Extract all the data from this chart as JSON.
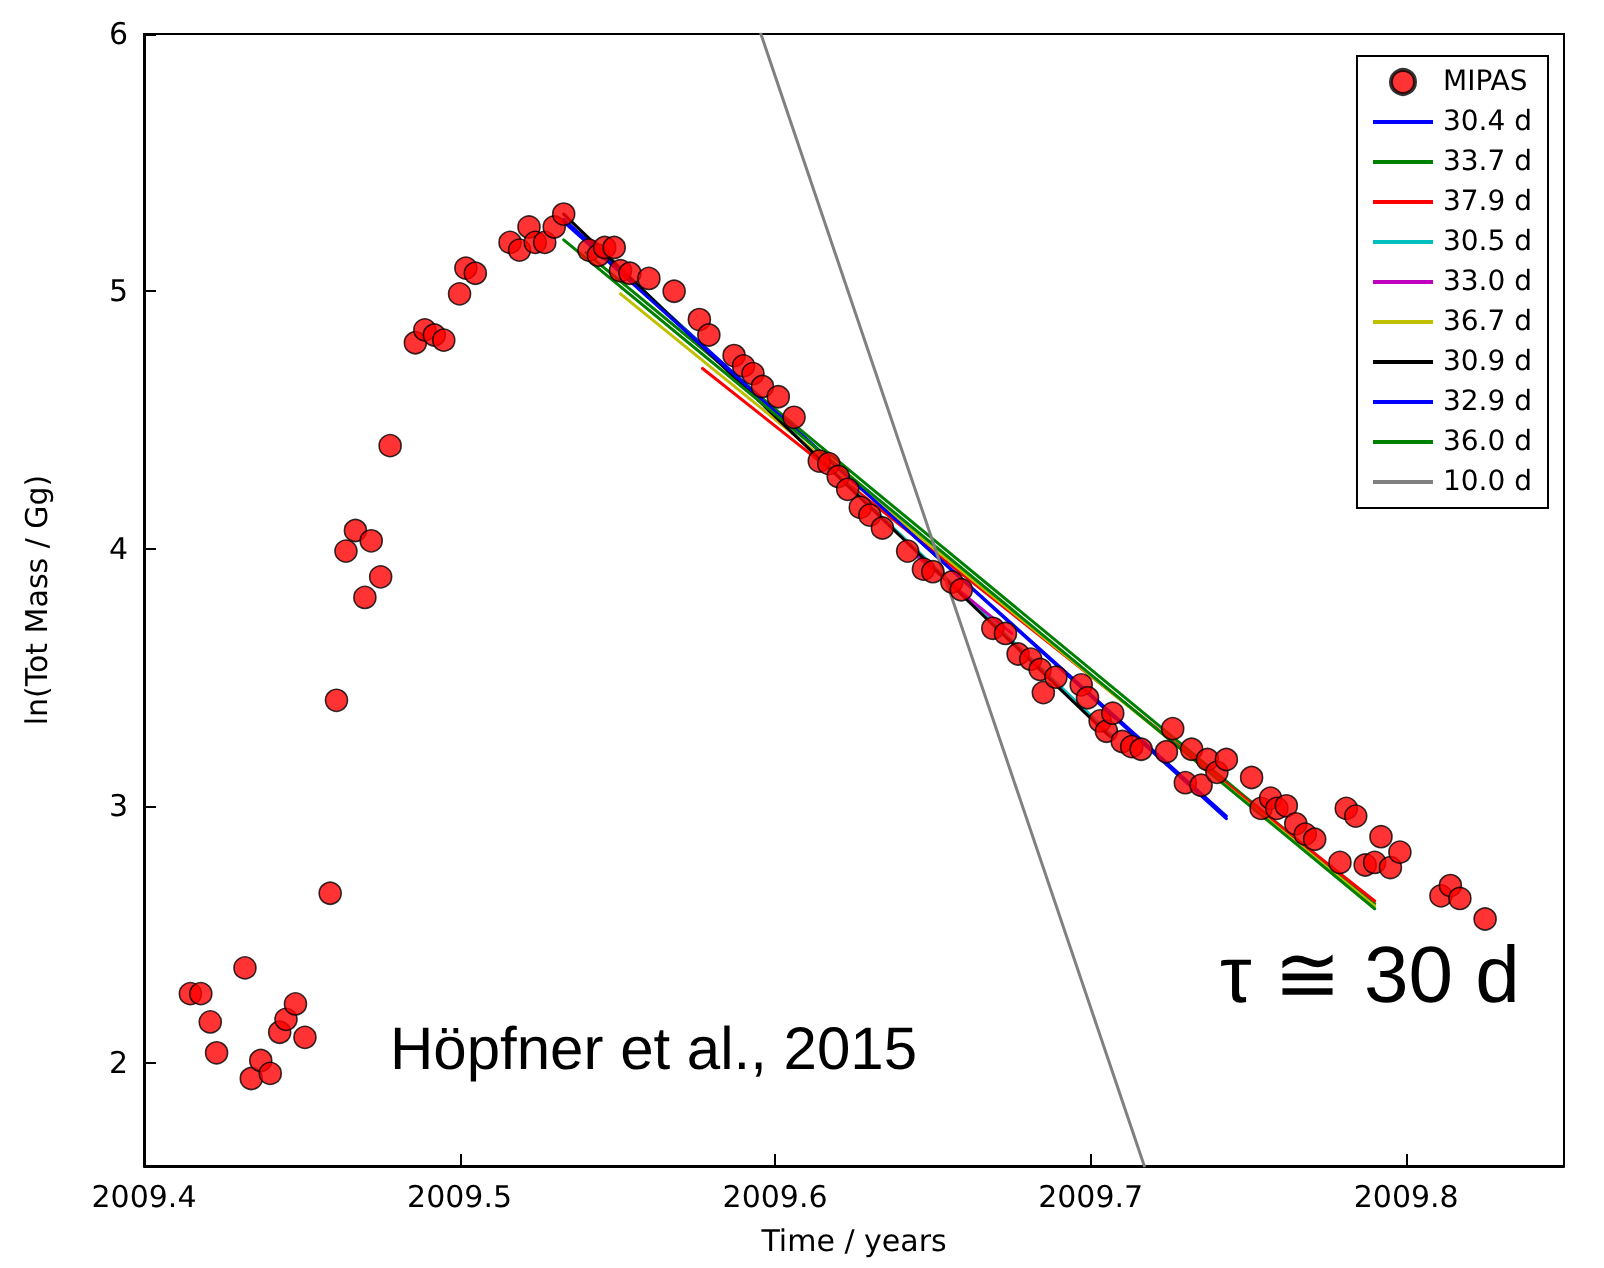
{
  "chart_data": {
    "type": "line",
    "xlabel": "Time / years",
    "ylabel": "ln(Tot Mass / Gg)",
    "annotations": [
      "Höpfner et al., 2015",
      "τ ≅ 30 d"
    ],
    "xlim": [
      2009.4,
      2009.85
    ],
    "xticks": [
      2009.4,
      2009.5,
      2009.6,
      2009.7,
      2009.8
    ],
    "ylim": [
      1.6,
      6
    ],
    "yticks": [
      2,
      3,
      4,
      5,
      6
    ],
    "grid": false,
    "legend": "top right",
    "series": [
      {
        "name": "MIPAS",
        "type": "scatter",
        "marker": "circle",
        "color": "#ff0000",
        "x": [
          2009.4147,
          2009.418,
          2009.421,
          2009.423,
          2009.432,
          2009.434,
          2009.437,
          2009.44,
          2009.443,
          2009.445,
          2009.448,
          2009.451,
          2009.459,
          2009.461,
          2009.464,
          2009.467,
          2009.47,
          2009.472,
          2009.475,
          2009.478,
          2009.486,
          2009.489,
          2009.492,
          2009.495,
          2009.5,
          2009.502,
          2009.505,
          2009.516,
          2009.519,
          2009.522,
          2009.524,
          2009.527,
          2009.53,
          2009.533,
          2009.541,
          2009.544,
          2009.546,
          2009.549,
          2009.551,
          2009.554,
          2009.56,
          2009.568,
          2009.576,
          2009.579,
          2009.587,
          2009.59,
          2009.593,
          2009.596,
          2009.601,
          2009.606,
          2009.614,
          2009.617,
          2009.62,
          2009.623,
          2009.627,
          2009.63,
          2009.634,
          2009.642,
          2009.647,
          2009.65,
          2009.656,
          2009.659,
          2009.669,
          2009.673,
          2009.677,
          2009.681,
          2009.684,
          2009.685,
          2009.689,
          2009.697,
          2009.699,
          2009.703,
          2009.705,
          2009.707,
          2009.71,
          2009.713,
          2009.716,
          2009.724,
          2009.726,
          2009.73,
          2009.732,
          2009.735,
          2009.737,
          2009.74,
          2009.743,
          2009.751,
          2009.754,
          2009.757,
          2009.759,
          2009.762,
          2009.765,
          2009.768,
          2009.771,
          2009.779,
          2009.781,
          2009.784,
          2009.787,
          2009.79,
          2009.792,
          2009.795,
          2009.798,
          2009.811,
          2009.814,
          2009.817,
          2009.825
        ],
        "values": [
          2.27,
          2.27,
          2.16,
          2.04,
          2.37,
          1.94,
          2.01,
          1.96,
          2.12,
          2.17,
          2.23,
          2.1,
          2.66,
          3.41,
          3.99,
          4.07,
          3.81,
          4.03,
          3.89,
          4.4,
          4.8,
          4.85,
          4.83,
          4.81,
          4.99,
          5.09,
          5.07,
          5.19,
          5.16,
          5.25,
          5.19,
          5.19,
          5.25,
          5.3,
          5.16,
          5.14,
          5.17,
          5.17,
          5.08,
          5.07,
          5.05,
          5.0,
          4.89,
          4.83,
          4.75,
          4.71,
          4.68,
          4.63,
          4.59,
          4.51,
          4.34,
          4.33,
          4.28,
          4.23,
          4.16,
          4.13,
          4.08,
          3.99,
          3.92,
          3.91,
          3.87,
          3.84,
          3.69,
          3.67,
          3.59,
          3.57,
          3.53,
          3.44,
          3.5,
          3.47,
          3.42,
          3.33,
          3.29,
          3.36,
          3.25,
          3.23,
          3.22,
          3.21,
          3.3,
          3.09,
          3.22,
          3.08,
          3.18,
          3.13,
          3.18,
          3.11,
          2.99,
          3.03,
          2.99,
          3.0,
          2.93,
          2.89,
          2.87,
          2.78,
          2.99,
          2.96,
          2.77,
          2.78,
          2.88,
          2.76,
          2.82,
          2.65,
          2.69,
          2.64,
          2.56
        ]
      },
      {
        "name": "30.4 d",
        "marker": "none",
        "color": "#0000ff",
        "x": [
          2009.533,
          2009.743
        ],
        "values": [
          5.28,
          2.95
        ]
      },
      {
        "name": "33.7 d",
        "marker": "none",
        "color": "#008000",
        "x": [
          2009.54,
          2009.79
        ],
        "values": [
          5.15,
          2.62
        ]
      },
      {
        "name": "37.9 d",
        "marker": "none",
        "color": "#ff0000",
        "x": [
          2009.577,
          2009.79
        ],
        "values": [
          4.7,
          2.63
        ]
      },
      {
        "name": "30.5 d",
        "marker": "none",
        "color": "#00bfbf",
        "x": [
          2009.544,
          2009.707
        ],
        "values": [
          5.17,
          3.27
        ]
      },
      {
        "name": "33.0 d",
        "marker": "none",
        "color": "#bf00bf",
        "x": [
          2009.645,
          2009.675
        ],
        "values": [
          3.97,
          3.67
        ]
      },
      {
        "name": "36.7 d",
        "marker": "none",
        "color": "#bfbf00",
        "x": [
          2009.551,
          2009.79
        ],
        "values": [
          4.99,
          2.61
        ]
      },
      {
        "name": "30.9 d",
        "marker": "none",
        "color": "#000000",
        "x": [
          2009.533,
          2009.706
        ],
        "values": [
          5.3,
          3.27
        ]
      },
      {
        "name": "32.9 d",
        "marker": "none",
        "color": "#0000ff",
        "x": [
          2009.533,
          2009.743
        ],
        "values": [
          5.27,
          2.96
        ]
      },
      {
        "name": "36.0 d",
        "marker": "none",
        "color": "#008000",
        "x": [
          2009.533,
          2009.79
        ],
        "values": [
          5.2,
          2.6
        ]
      },
      {
        "name": "10.0 d",
        "marker": "none",
        "color": "#808080",
        "x": [
          2009.5955,
          2009.717
        ],
        "values": [
          6.0,
          1.6
        ]
      }
    ]
  }
}
